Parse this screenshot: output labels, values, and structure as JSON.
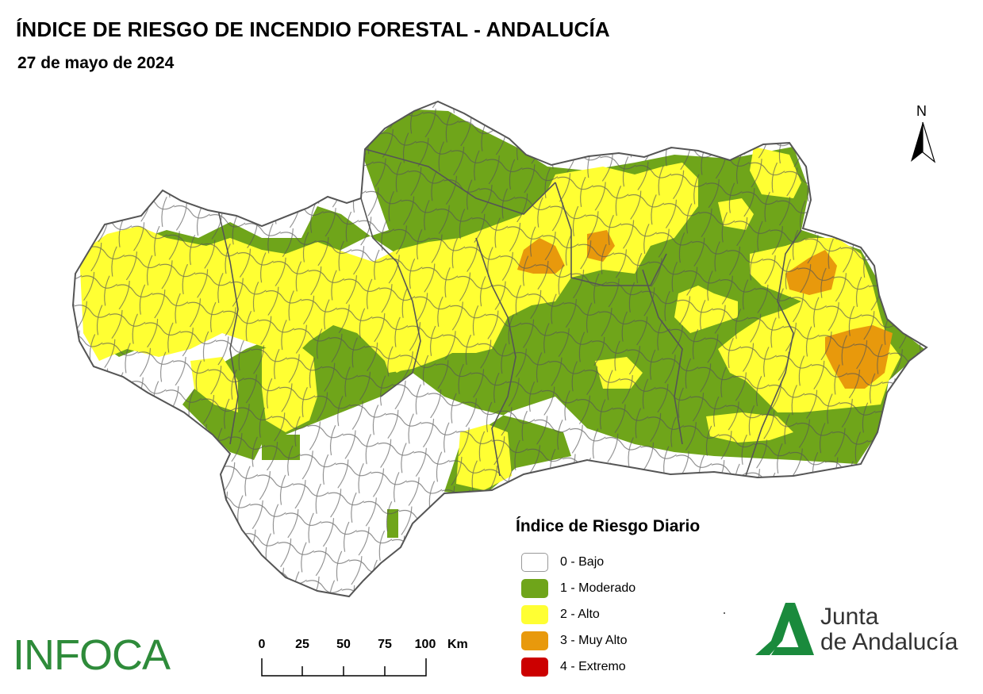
{
  "header": {
    "title": "ÍNDICE DE RIESGO DE INCENDIO FORESTAL - ANDALUCÍA",
    "date": "27 de mayo de 2024"
  },
  "map": {
    "region": "Andalucía",
    "risk_colors": {
      "bajo": "#ffffff",
      "moderado": "#6fa51a",
      "alto": "#ffff33",
      "muy_alto": "#e8990c",
      "extremo": "#cc0000"
    },
    "boundary_color": "#555555"
  },
  "north_arrow": {
    "label": "N"
  },
  "legend": {
    "title": "Índice de Riesgo Diario",
    "items": [
      {
        "label": "0 - Bajo",
        "color": "#ffffff"
      },
      {
        "label": "1 - Moderado",
        "color": "#6fa51a"
      },
      {
        "label": "2 - Alto",
        "color": "#ffff33"
      },
      {
        "label": "3 - Muy Alto",
        "color": "#e8990c"
      },
      {
        "label": "4 - Extremo",
        "color": "#cc0000"
      }
    ]
  },
  "scale_bar": {
    "ticks": [
      "0",
      "25",
      "50",
      "75",
      "100"
    ],
    "unit": "Km"
  },
  "logos": {
    "infoca": "INFOCA",
    "junta_line1": "Junta",
    "junta_line2": "de Andalucía"
  }
}
